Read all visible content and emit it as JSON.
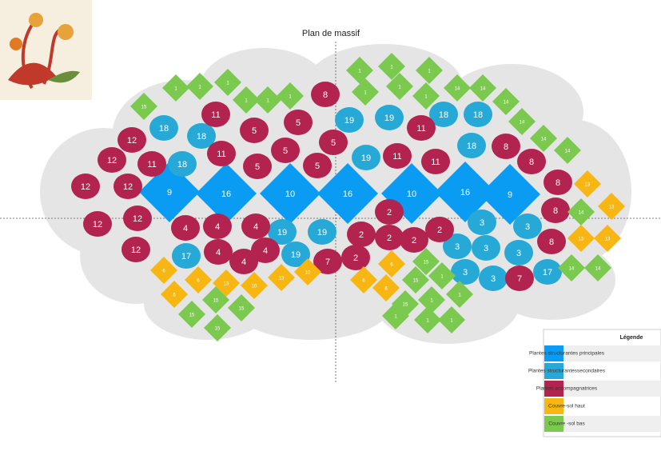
{
  "title": "Plan  de massif",
  "legend_title": "Légende",
  "groups": [
    {
      "name": "Plantes structurantes principales",
      "color": "#0a9bf2",
      "plants": [
        "9",
        "16",
        "10",
        "16",
        "10",
        "16",
        "9"
      ]
    },
    {
      "name": "Plantes structurantessecondaires",
      "color": "#27a9d8",
      "plants": [
        "18",
        "18",
        "18",
        "19",
        "19",
        "18",
        "18",
        "19",
        "18",
        "17",
        "19",
        "19",
        "19",
        "3",
        "3",
        "3",
        "3",
        "3",
        "3",
        "3",
        "17"
      ]
    },
    {
      "name": "Plantes accompagnatrices",
      "color": "#b3234f",
      "plants": [
        "8",
        "11",
        "5",
        "5",
        "12",
        "12",
        "11",
        "11",
        "5",
        "5",
        "5",
        "5",
        "11",
        "11",
        "11",
        "8",
        "8",
        "8",
        "12",
        "12",
        "12",
        "12",
        "12",
        "4",
        "4",
        "4",
        "4",
        "4",
        "4",
        "2",
        "2",
        "2",
        "2",
        "2",
        "2",
        "7",
        "8",
        "8",
        "7"
      ]
    },
    {
      "name": "Couvre-sol haut",
      "color": "#f7b612",
      "plants": [
        "13",
        "13",
        "13",
        "13",
        "6",
        "6",
        "6",
        "13",
        "10",
        "13",
        "10",
        "6",
        "6",
        "6"
      ]
    },
    {
      "name": "Couvre -sol bas",
      "color": "#7cc94f",
      "plants": [
        "15",
        "1",
        "1",
        "1",
        "1",
        "1",
        "1",
        "1",
        "1",
        "1",
        "1",
        "1",
        "1",
        "14",
        "14",
        "14",
        "14",
        "14",
        "14",
        "14",
        "14",
        "14",
        "15",
        "15",
        "1",
        "1",
        "15",
        "1",
        "1",
        "1",
        "1",
        "15",
        "15",
        "15",
        "15"
      ]
    }
  ]
}
